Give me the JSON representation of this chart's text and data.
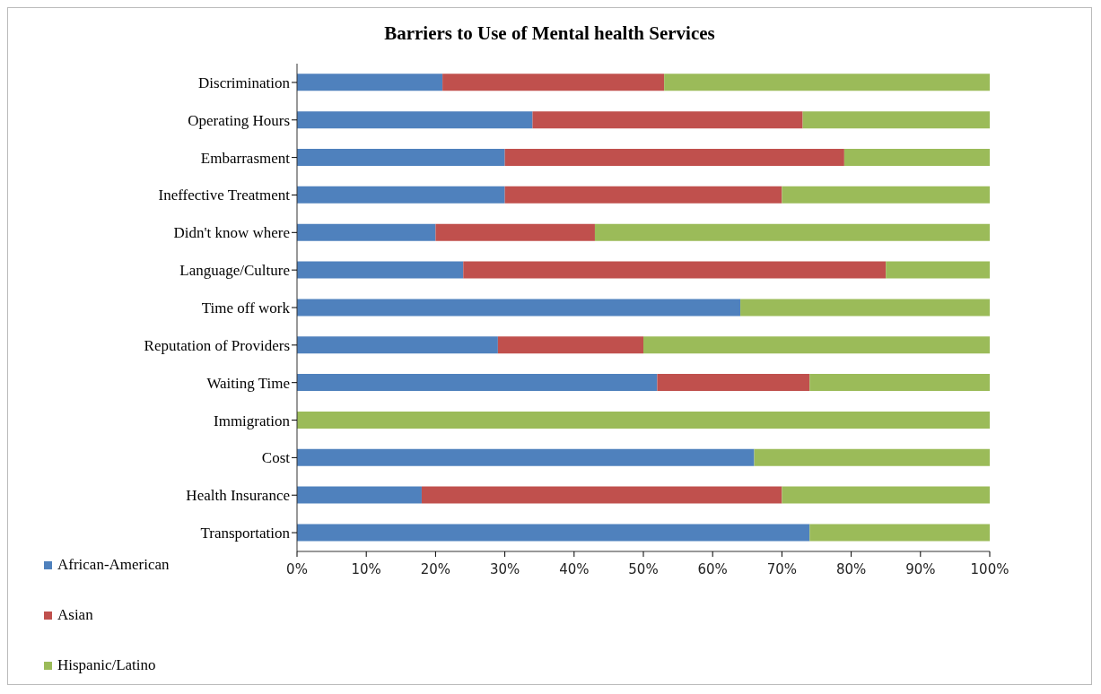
{
  "chart_data": {
    "type": "bar",
    "orientation": "horizontal",
    "stacked": true,
    "title": "Barriers to Use of Mental health Services",
    "categories": [
      "Discrimination",
      "Operating Hours",
      "Embarrasment",
      "Ineffective Treatment",
      "Didn't know where",
      "Language/Culture",
      "Time off work",
      "Reputation of Providers",
      "Waiting Time",
      "Immigration",
      "Cost",
      "Health Insurance",
      "Transportation"
    ],
    "series": [
      {
        "name": "African-American",
        "color": "#4f81bd",
        "values": [
          21,
          34,
          30,
          30,
          20,
          24,
          64,
          29,
          52,
          0,
          66,
          18,
          74
        ]
      },
      {
        "name": "Asian",
        "color": "#c0504d",
        "values": [
          32,
          39,
          49,
          40,
          23,
          61,
          0,
          21,
          22,
          0,
          0,
          52,
          0
        ]
      },
      {
        "name": "Hispanic/Latino",
        "color": "#9bbb59",
        "values": [
          47,
          27,
          21,
          30,
          57,
          15,
          36,
          50,
          26,
          100,
          34,
          30,
          26
        ]
      }
    ],
    "xlim": [
      0,
      100
    ],
    "xticks": [
      {
        "value": 0,
        "label": "0%"
      },
      {
        "value": 10,
        "label": "10%"
      },
      {
        "value": 20,
        "label": "20%"
      },
      {
        "value": 30,
        "label": "30%"
      },
      {
        "value": 40,
        "label": "40%"
      },
      {
        "value": 50,
        "label": "50%"
      },
      {
        "value": 60,
        "label": "60%"
      },
      {
        "value": 70,
        "label": "70%"
      },
      {
        "value": 80,
        "label": "80%"
      },
      {
        "value": 90,
        "label": "90%"
      },
      {
        "value": 100,
        "label": "100%"
      }
    ],
    "legend": "bottom left"
  }
}
